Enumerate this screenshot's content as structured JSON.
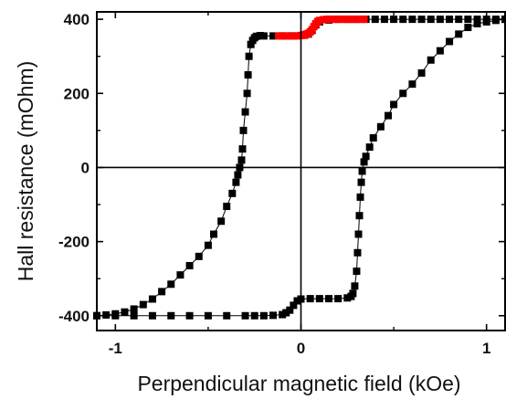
{
  "chart_data": {
    "type": "scatter",
    "title": "",
    "xlabel": "Perpendicular magnetic field (kOe)",
    "ylabel": "Hall resistance (mOhm)",
    "xlim": [
      -1.1,
      1.1
    ],
    "ylim": [
      -440,
      420
    ],
    "xticks": [
      -1,
      0,
      1
    ],
    "xtick_labels": [
      "-1",
      "0",
      "1"
    ],
    "yticks": [
      -400,
      -200,
      0,
      200,
      400
    ],
    "ytick_labels": [
      "-400",
      "-200",
      "0",
      "200",
      "400"
    ],
    "zero_lines": true,
    "grid": false,
    "legend": "none",
    "series": [
      {
        "color": "#000000",
        "marker": "square",
        "connected": true,
        "points": [
          [
            1.1,
            400
          ],
          [
            1.05,
            400
          ],
          [
            1.0,
            400
          ],
          [
            0.95,
            400
          ],
          [
            0.9,
            400
          ],
          [
            0.85,
            400
          ],
          [
            0.8,
            400
          ],
          [
            0.75,
            400
          ],
          [
            0.7,
            400
          ],
          [
            0.65,
            400
          ],
          [
            0.6,
            400
          ],
          [
            0.55,
            400
          ],
          [
            0.5,
            400
          ],
          [
            0.45,
            400
          ],
          [
            0.4,
            400
          ],
          [
            0.35,
            400
          ],
          [
            0.3,
            400
          ],
          [
            0.25,
            400
          ],
          [
            0.2,
            400
          ],
          [
            0.15,
            398
          ],
          [
            0.1,
            393
          ],
          [
            0.08,
            385
          ],
          [
            0.06,
            370
          ],
          [
            0.04,
            360
          ],
          [
            0.02,
            357
          ],
          [
            0.0,
            356
          ],
          [
            -0.05,
            355
          ],
          [
            -0.1,
            355
          ],
          [
            -0.15,
            355
          ],
          [
            -0.2,
            355
          ],
          [
            -0.22,
            356
          ],
          [
            -0.24,
            354
          ],
          [
            -0.25,
            350
          ],
          [
            -0.26,
            343
          ],
          [
            -0.27,
            332
          ],
          [
            -0.28,
            300
          ],
          [
            -0.285,
            250
          ],
          [
            -0.29,
            200
          ],
          [
            -0.3,
            150
          ],
          [
            -0.31,
            100
          ],
          [
            -0.315,
            50
          ],
          [
            -0.32,
            20
          ],
          [
            -0.33,
            0
          ],
          [
            -0.34,
            -20
          ],
          [
            -0.35,
            -40
          ],
          [
            -0.37,
            -70
          ],
          [
            -0.4,
            -105
          ],
          [
            -0.43,
            -145
          ],
          [
            -0.47,
            -180
          ],
          [
            -0.5,
            -210
          ],
          [
            -0.55,
            -240
          ],
          [
            -0.6,
            -265
          ],
          [
            -0.65,
            -290
          ],
          [
            -0.7,
            -315
          ],
          [
            -0.75,
            -335
          ],
          [
            -0.8,
            -355
          ],
          [
            -0.85,
            -370
          ],
          [
            -0.9,
            -382
          ],
          [
            -0.95,
            -390
          ],
          [
            -1.0,
            -395
          ],
          [
            -1.05,
            -398
          ],
          [
            -1.1,
            -400
          ]
        ]
      },
      {
        "color": "#000000",
        "marker": "square",
        "connected": true,
        "points": [
          [
            -1.1,
            -400
          ],
          [
            -1.0,
            -400
          ],
          [
            -0.9,
            -400
          ],
          [
            -0.8,
            -400
          ],
          [
            -0.7,
            -400
          ],
          [
            -0.6,
            -400
          ],
          [
            -0.5,
            -400
          ],
          [
            -0.4,
            -400
          ],
          [
            -0.3,
            -400
          ],
          [
            -0.25,
            -400
          ],
          [
            -0.2,
            -400
          ],
          [
            -0.15,
            -399
          ],
          [
            -0.1,
            -397
          ],
          [
            -0.08,
            -392
          ],
          [
            -0.06,
            -385
          ],
          [
            -0.04,
            -372
          ],
          [
            -0.02,
            -360
          ],
          [
            0.0,
            -355
          ],
          [
            0.05,
            -354
          ],
          [
            0.1,
            -354
          ],
          [
            0.15,
            -354
          ],
          [
            0.2,
            -354
          ],
          [
            0.25,
            -352
          ],
          [
            0.27,
            -348
          ],
          [
            0.28,
            -340
          ],
          [
            0.29,
            -320
          ],
          [
            0.3,
            -280
          ],
          [
            0.305,
            -230
          ],
          [
            0.31,
            -180
          ],
          [
            0.315,
            -130
          ],
          [
            0.32,
            -80
          ],
          [
            0.325,
            -40
          ],
          [
            0.33,
            -10
          ],
          [
            0.34,
            15
          ],
          [
            0.35,
            30
          ],
          [
            0.37,
            55
          ],
          [
            0.39,
            80
          ],
          [
            0.43,
            110
          ],
          [
            0.47,
            140
          ],
          [
            0.5,
            170
          ],
          [
            0.55,
            200
          ],
          [
            0.6,
            225
          ],
          [
            0.65,
            255
          ],
          [
            0.7,
            290
          ],
          [
            0.75,
            315
          ],
          [
            0.8,
            340
          ],
          [
            0.85,
            360
          ],
          [
            0.9,
            378
          ],
          [
            0.95,
            388
          ],
          [
            1.0,
            393
          ],
          [
            1.05,
            397
          ],
          [
            1.1,
            400
          ]
        ]
      },
      {
        "color": "#ff0000",
        "marker": "square",
        "connected": false,
        "points": [
          [
            -0.12,
            355
          ],
          [
            -0.1,
            355
          ],
          [
            -0.08,
            355
          ],
          [
            -0.06,
            355
          ],
          [
            -0.04,
            355
          ],
          [
            -0.02,
            355
          ],
          [
            0.0,
            356
          ],
          [
            0.01,
            357
          ],
          [
            0.02,
            358
          ],
          [
            0.03,
            360
          ],
          [
            0.04,
            362
          ],
          [
            0.05,
            366
          ],
          [
            0.06,
            372
          ],
          [
            0.07,
            380
          ],
          [
            0.08,
            388
          ],
          [
            0.09,
            394
          ],
          [
            0.1,
            397
          ],
          [
            0.12,
            399
          ],
          [
            0.14,
            400
          ],
          [
            0.16,
            400
          ],
          [
            0.18,
            400
          ],
          [
            0.2,
            400
          ],
          [
            0.22,
            400
          ],
          [
            0.24,
            400
          ],
          [
            0.26,
            400
          ],
          [
            0.28,
            400
          ],
          [
            0.3,
            400
          ],
          [
            0.32,
            400
          ],
          [
            0.34,
            400
          ]
        ]
      }
    ]
  }
}
